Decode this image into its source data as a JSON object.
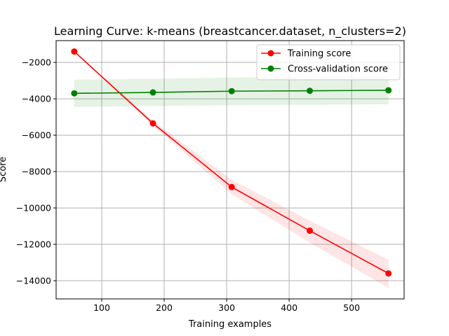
{
  "chart_data": {
    "type": "line",
    "title": "Learning Curve: k-means (breastcancer.dataset, n_clusters=2)",
    "xlabel": "Training examples",
    "ylabel": "Score",
    "xlim": [
      27,
      584
    ],
    "ylim": [
      -15000,
      -800
    ],
    "xticks": [
      100,
      200,
      300,
      400,
      500
    ],
    "yticks": [
      -14000,
      -12000,
      -10000,
      -8000,
      -6000,
      -4000,
      -2000
    ],
    "xtick_labels": [
      "100",
      "200",
      "300",
      "400",
      "500"
    ],
    "ytick_labels": [
      "−14000",
      "−12000",
      "−10000",
      "−8000",
      "−6000",
      "−4000",
      "−2000"
    ],
    "grid": true,
    "legend_position": "top-right",
    "x": [
      56,
      182,
      308,
      433,
      559
    ],
    "series": [
      {
        "name": "Training score",
        "color": "#ff0000",
        "fill_color": "#ff0000",
        "values": [
          -1400,
          -5350,
          -8850,
          -11250,
          -13600
        ],
        "lower": [
          -1400,
          -5450,
          -9250,
          -11900,
          -14400
        ],
        "upper": [
          -1400,
          -5200,
          -8450,
          -10700,
          -12850
        ]
      },
      {
        "name": "Cross-validation score",
        "color": "#008000",
        "fill_color": "#008000",
        "values": [
          -3700,
          -3650,
          -3580,
          -3560,
          -3530
        ],
        "lower": [
          -4450,
          -4400,
          -4350,
          -4330,
          -4300
        ],
        "upper": [
          -2950,
          -2900,
          -2830,
          -2800,
          -2780
        ]
      }
    ]
  }
}
